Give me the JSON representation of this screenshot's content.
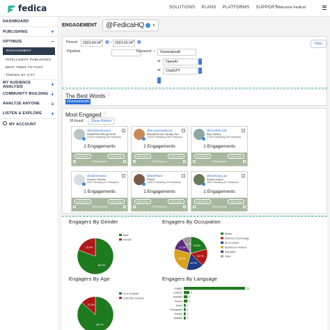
{
  "brand": {
    "name": "fedica"
  },
  "topnav": {
    "items": [
      "SOLUTIONS",
      "PLANS",
      "PLATFORMS",
      "SUPPORT"
    ],
    "welcome": "Welcome Fedica!"
  },
  "sidebar": {
    "dashboard": "DASHBOARD",
    "publishing": "PUBLISHING",
    "optimize": "OPTIMIZE",
    "optimize_items": [
      "ENGAGEMENT",
      "INTELLIGENT PUBLISHING",
      "BEST TIMES TO POST",
      "TRENDS BY CITY"
    ],
    "my_audience": "MY AUDIENCE ANALYSIS",
    "community": "COMMUNITY BUILDING",
    "analyze": "ANALYZE ANYONE",
    "listen": "LISTEN & EXPLORE",
    "account": "MY ACCOUNT"
  },
  "header": {
    "title": "ENGAGEMENT",
    "handle": "@FedicaHQ"
  },
  "filters": {
    "period_label": "Period",
    "date_start": "2023-04-24",
    "date_end": "2023-05-24",
    "pipeline_label": "Pipeline",
    "keyword_label": "Keyword",
    "keyword_1": "GenerativeAI",
    "or_label": "or",
    "keyword_2": "OpenAI",
    "keyword_3": "ChatGPT",
    "filter_button": "Filter"
  },
  "best_words": {
    "title": "The Best Words",
    "tag": "#GenerativeAI"
  },
  "most_engaged": {
    "title": "Most Engaged",
    "found": "36 found.",
    "history_button": "Show History",
    "cards": [
      {
        "handle": "@OmnilaAkazond",
        "name": "DalabFriendShop #163",
        "stats": "3,616 Following  35 Followers",
        "engagements": "2 Engagements",
        "avatar_color": "#b7c6c6"
      },
      {
        "handle": "@NovasInvestbe14",
        "name": "#MoodHound, aiLady Oui",
        "stats": "2,515 Following  269 Followers",
        "engagements": "2 Engagements",
        "avatar_color": "#c98a5a"
      },
      {
        "handle": "@Freeb00_ERI",
        "name": "Bey History",
        "stats": "1,200 Following  45 Followers",
        "engagements": "1 Engagements",
        "avatar_color": "#8fa6a6"
      },
      {
        "handle": "@ardenmoon2",
        "name": "Andres Onman",
        "stats": "234 Following  11 Followers",
        "engagements": "1 Engagements",
        "avatar_color": "#d8dde4"
      },
      {
        "handle": "@Nd4Plans",
        "name": "Pilans",
        "stats": "1,820 Following  34 Followers",
        "engagements": "1 Engagements",
        "avatar_color": "#7c5a48"
      },
      {
        "handle": "@bombong_ap",
        "name": "Bedok Angon",
        "stats": "108 Following  67 Followers",
        "engagements": "1 Engagements",
        "avatar_color": "#6a7a58"
      }
    ],
    "history_label": "HISTORY",
    "follow_label": "FOLLOW",
    "footer_label": "Following you"
  },
  "charts": {
    "gender": {
      "title": "Engagers By Gender"
    },
    "occupation": {
      "title": "Engagers By Occupation"
    },
    "age": {
      "title": "Engagers By Age"
    },
    "language": {
      "title": "Engagers By Language"
    }
  },
  "chart_data": [
    {
      "type": "pie",
      "title": "Engagers By Gender",
      "categories": [
        "Male",
        "Female"
      ],
      "values": [
        80.6,
        19.4
      ],
      "colors": [
        "#1e7a1e",
        "#b01818"
      ]
    },
    {
      "type": "pie",
      "title": "Engagers By Occupation",
      "categories": [
        "Media",
        "Science & Technology",
        "Art & Culture",
        "Business & Finance",
        "Education",
        "Other"
      ],
      "values": [
        20.8,
        16.7,
        16.7,
        25.0,
        12.5,
        8.3
      ],
      "colors": [
        "#1e7a1e",
        "#b01818",
        "#1f3c88",
        "#d9a21b",
        "#5c2a7a",
        "#9a9a9a"
      ]
    },
    {
      "type": "pie",
      "title": "Engagers By Age",
      "categories": [
        "24 to 34 years",
        "Less than 24 years"
      ],
      "values": [
        86.7,
        13.3
      ],
      "colors": [
        "#1e7a1e",
        "#b01818"
      ]
    },
    {
      "type": "bar",
      "title": "Engagers By Language",
      "categories": [
        "English",
        "Chinese",
        "Swedish",
        "French",
        "Dutch",
        "Portuguese",
        "Korean",
        "Spanish"
      ],
      "values": [
        33,
        3,
        2,
        2,
        1,
        1,
        1,
        1
      ],
      "color": "#1e7a1e"
    }
  ]
}
